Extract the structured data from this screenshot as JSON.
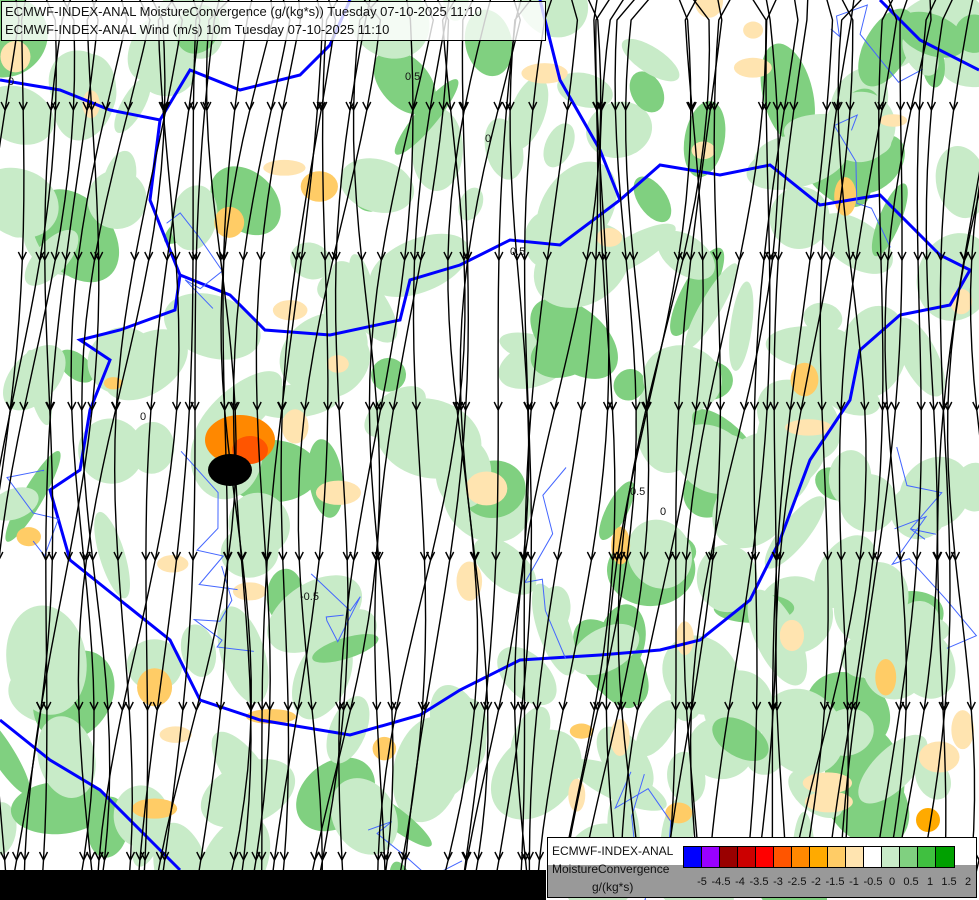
{
  "title": {
    "line1": "ECMWF-INDEX-ANAL MoistureConvergence (g/(kg*s)) Tuesday 07-10-2025 11:10",
    "line2": "ECMWF-INDEX-ANAL Wind (m/s) 10m Tuesday 07-10-2025 11:10"
  },
  "legend": {
    "model": "ECMWF-INDEX-ANAL",
    "parameter": "MoistureConvergence",
    "unit": "g/(kg*s)",
    "colors": [
      "#0000ff",
      "#9900ff",
      "#990000",
      "#cc0000",
      "#ff0000",
      "#ff5500",
      "#ff8800",
      "#ffaa00",
      "#ffcc66",
      "#ffe4b0",
      "#ffffff",
      "#c8ebc8",
      "#80d080",
      "#40c040",
      "#00a000"
    ],
    "ticks": [
      "-5",
      "-4.5",
      "-4",
      "-3.5",
      "-3",
      "-2.5",
      "-2",
      "-1.5",
      "-1",
      "-0.5",
      "0",
      "0.5",
      "1",
      "1.5",
      "2"
    ]
  },
  "map": {
    "contour_labels": [
      "0",
      "0.5",
      "0",
      "0.5",
      "0",
      "-0.5",
      "0",
      "0.5"
    ],
    "border_color": "#0000ff",
    "river_color": "#4466ff",
    "streamline_color": "#000000"
  }
}
